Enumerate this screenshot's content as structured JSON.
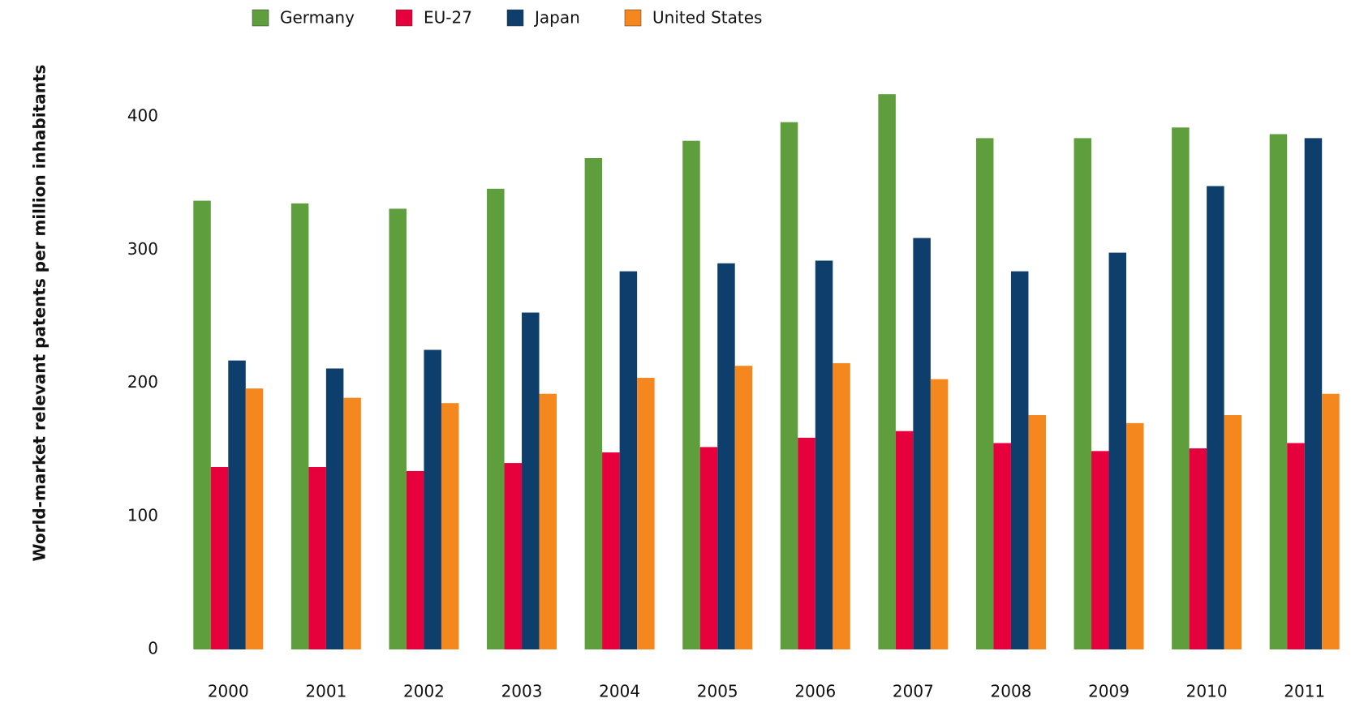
{
  "chart_data": {
    "type": "bar",
    "y_label": "World-market relevant patents per million inhabitants",
    "categories": [
      "2000",
      "2001",
      "2002",
      "2003",
      "2004",
      "2005",
      "2006",
      "2007",
      "2008",
      "2009",
      "2010",
      "2011"
    ],
    "series": [
      {
        "name": "Germany",
        "color": "#5f9e3c",
        "values": [
          337,
          335,
          331,
          346,
          369,
          382,
          396,
          417,
          384,
          384,
          392,
          387
        ]
      },
      {
        "name": "EU-27",
        "color": "#e6003c",
        "values": [
          137,
          137,
          134,
          140,
          148,
          152,
          159,
          164,
          155,
          149,
          151,
          155
        ]
      },
      {
        "name": "Japan",
        "color": "#0e3f6c",
        "values": [
          217,
          211,
          225,
          253,
          284,
          290,
          292,
          309,
          284,
          298,
          348,
          384
        ]
      },
      {
        "name": "United States",
        "color": "#f5871f",
        "values": [
          196,
          189,
          185,
          192,
          204,
          213,
          215,
          203,
          176,
          170,
          176,
          192
        ]
      }
    ],
    "ylim": [
      0,
      450
    ],
    "yticks": [
      0,
      100,
      200,
      300,
      400
    ],
    "grid": false,
    "legend": "top"
  }
}
